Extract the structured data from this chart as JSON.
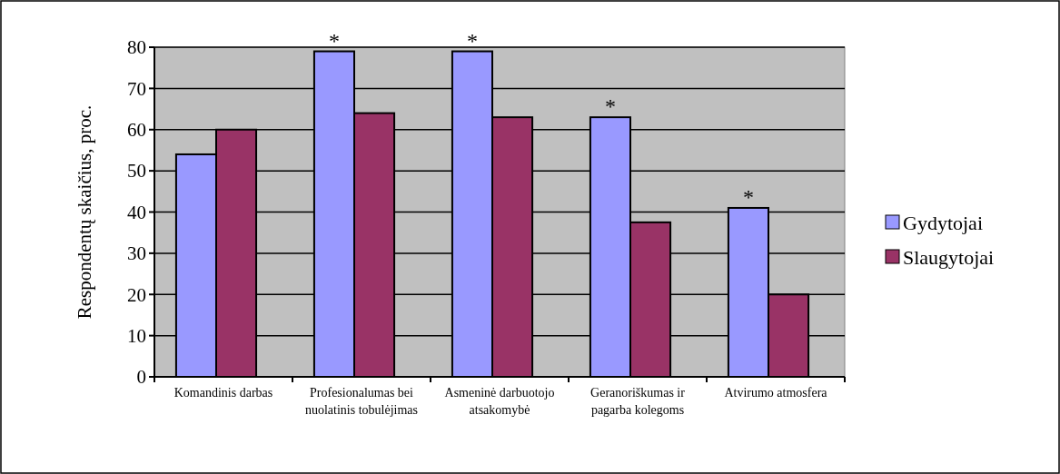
{
  "chart_data": {
    "type": "bar",
    "ylabel": "Respondentų skaičius, proc.",
    "categories": [
      "Komandinis darbas",
      "Profesionalumas bei nuolatinis tobulėjimas",
      "Asmeninė darbuotojo atsakomybė",
      "Geranoriškumas ir pagarba kolegoms",
      "Atvirumo atmosfera"
    ],
    "series": [
      {
        "name": "Gydytojai",
        "color": "#9999ff",
        "values": [
          54,
          79,
          79,
          63,
          41
        ]
      },
      {
        "name": "Slaugytojai",
        "color": "#993366",
        "values": [
          60,
          64,
          63,
          37.5,
          20
        ]
      }
    ],
    "annotations": [
      "*",
      "*",
      "*",
      "*"
    ],
    "ylim": [
      0,
      80
    ],
    "yticks": [
      0,
      10,
      20,
      30,
      40,
      50,
      60,
      70,
      80
    ],
    "grid": "y",
    "legend": "right"
  }
}
